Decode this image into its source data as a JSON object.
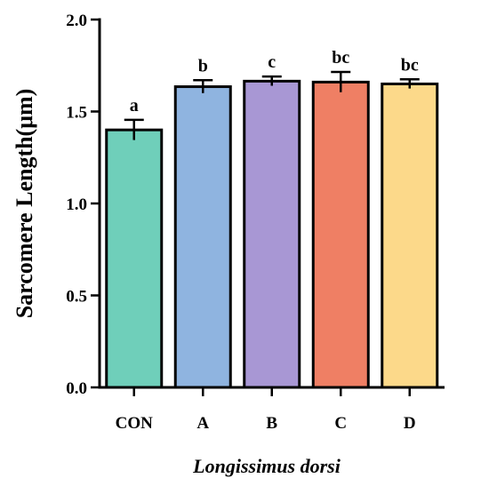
{
  "chart_data": {
    "type": "bar",
    "categories": [
      "CON",
      "A",
      "B",
      "C",
      "D"
    ],
    "values": [
      1.4,
      1.635,
      1.665,
      1.66,
      1.65
    ],
    "errors": [
      0.055,
      0.035,
      0.025,
      0.055,
      0.025
    ],
    "significance": [
      "a",
      "b",
      "c",
      "bc",
      "bc"
    ],
    "colors": [
      "#6fcfba",
      "#8fb4e0",
      "#a897d4",
      "#ef7f64",
      "#fcd98a"
    ],
    "ylabel": "Sarcomere Length(μm)",
    "xlabel": "Longissimus dorsi",
    "ylim": [
      0,
      2.0
    ],
    "yticks": [
      0.0,
      0.5,
      1.0,
      1.5,
      2.0
    ],
    "ytick_labels": [
      "0.0",
      "0.5",
      "1.0",
      "1.5",
      "2.0"
    ],
    "grid": false,
    "legend": "none"
  }
}
